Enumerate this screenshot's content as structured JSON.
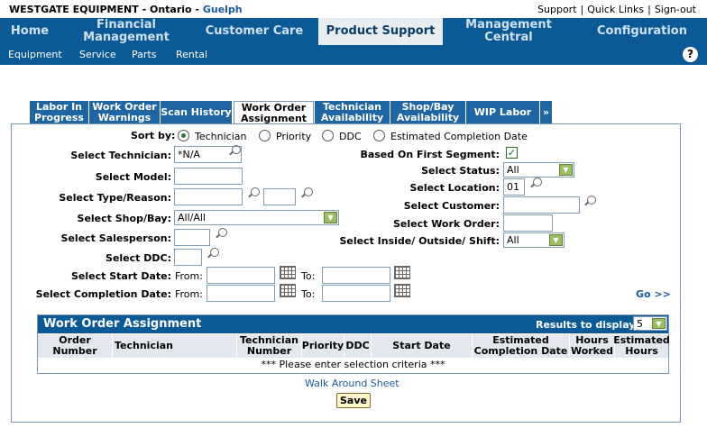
{
  "header": {
    "company": "WESTGATE EQUIPMENT",
    "dash1": " - ",
    "region": "Ontario",
    "dash2": " - ",
    "location": "Guelph",
    "links": [
      "Support",
      "Quick Links",
      "Sign-out"
    ],
    "separator": "|"
  },
  "mainnav": [
    "Home",
    "Financial Management",
    "Customer Care",
    "Product Support",
    "Management Central",
    "Configuration"
  ],
  "subnav": [
    "Equipment",
    "Service",
    "Parts",
    "Rental"
  ],
  "help": "?",
  "tabs": [
    "Labor In Progress",
    "Work Order Warnings",
    "Scan History",
    "Work Order Assignment",
    "Technician Availability",
    "Shop/Bay Availability",
    "WIP Labor",
    "»"
  ],
  "form": {
    "sort_by_label": "Sort by:",
    "sort_options": [
      "Technician",
      "Priority",
      "DDC",
      "Estimated Completion Date"
    ],
    "technician_label": "Select Technician:",
    "technician_value": "*N/A",
    "model_label": "Select Model:",
    "type_reason_label": "Select Type/Reason:",
    "shop_bay_label": "Select Shop/Bay:",
    "shop_bay_value": "All/All",
    "salesperson_label": "Select Salesperson:",
    "ddc_label": "Select DDC:",
    "start_date_label": "Select Start Date:",
    "completion_date_label": "Select Completion Date:",
    "from": "From:",
    "to": "To:",
    "first_segment_label": "Based On First Segment:",
    "first_segment_check": "✓",
    "status_label": "Select Status:",
    "status_value": "All",
    "location_label": "Select Location:",
    "location_value": "01",
    "customer_label": "Select Customer:",
    "work_order_label": "Select Work Order:",
    "inside_outside_label": "Select Inside/ Outside/ Shift:",
    "inside_outside_value": "All",
    "go": "Go >>"
  },
  "results": {
    "title": "Work Order Assignment",
    "display_label": "Results to display:",
    "display_value": "5",
    "columns": [
      "Order Number",
      "Technician",
      "Technician Number",
      "Priority",
      "DDC",
      "Start Date",
      "Estimated Completion Date",
      "Hours Worked",
      "Estimated Hours"
    ],
    "empty_message": "*** Please enter selection criteria ***"
  },
  "footer": {
    "walk_around": "Walk Around Sheet",
    "save": "Save"
  },
  "colors": {
    "nav_blue": "#0b5a96",
    "tab_blue": "#1f65a1",
    "link_blue": "#1a5a9a",
    "select_arrow_green": "#9bbd64"
  }
}
